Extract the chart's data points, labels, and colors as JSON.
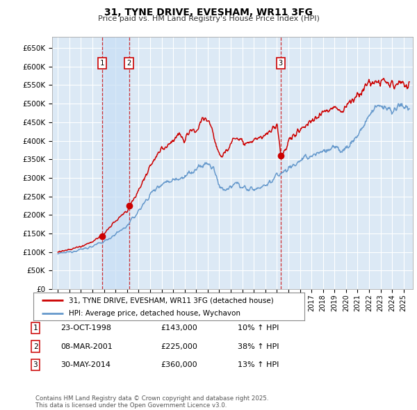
{
  "title": "31, TYNE DRIVE, EVESHAM, WR11 3FG",
  "subtitle": "Price paid vs. HM Land Registry's House Price Index (HPI)",
  "ylim": [
    0,
    680000
  ],
  "yticks": [
    0,
    50000,
    100000,
    150000,
    200000,
    250000,
    300000,
    350000,
    400000,
    450000,
    500000,
    550000,
    600000,
    650000
  ],
  "ytick_labels": [
    "£0",
    "£50K",
    "£100K",
    "£150K",
    "£200K",
    "£250K",
    "£300K",
    "£350K",
    "£400K",
    "£450K",
    "£500K",
    "£550K",
    "£600K",
    "£650K"
  ],
  "background_color": "#ffffff",
  "plot_bg_color": "#dce9f5",
  "grid_color": "#ffffff",
  "sale_color": "#cc0000",
  "hpi_color": "#6699cc",
  "sale_prices": [
    143000,
    225000,
    360000
  ],
  "sale_labels": [
    "1",
    "2",
    "3"
  ],
  "sale_annotations": [
    {
      "label": "1",
      "date": "23-OCT-1998",
      "price": "£143,000",
      "hpi": "10% ↑ HPI"
    },
    {
      "label": "2",
      "date": "08-MAR-2001",
      "price": "£225,000",
      "hpi": "38% ↑ HPI"
    },
    {
      "label": "3",
      "date": "30-MAY-2014",
      "price": "£360,000",
      "hpi": "13% ↑ HPI"
    }
  ],
  "legend_line1": "31, TYNE DRIVE, EVESHAM, WR11 3FG (detached house)",
  "legend_line2": "HPI: Average price, detached house, Wychavon",
  "footer": "Contains HM Land Registry data © Crown copyright and database right 2025.\nThis data is licensed under the Open Government Licence v3.0.",
  "xmin": 1994.5,
  "xmax": 2025.8,
  "shade_color": "#c8dff5",
  "shade_alpha": 0.7
}
